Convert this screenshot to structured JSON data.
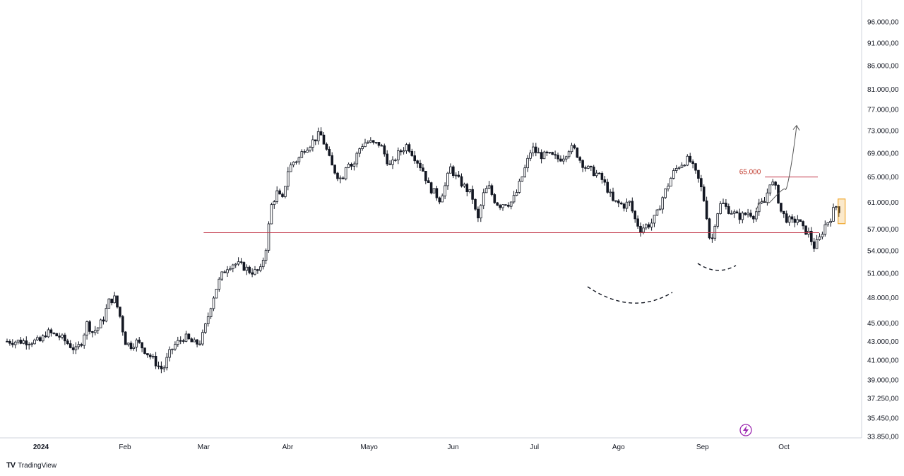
{
  "chart_data": {
    "type": "candlestick",
    "title": "",
    "xlabel": "",
    "ylabel": "",
    "yaxis_scale": "log",
    "ylim": [
      33850,
      100000
    ],
    "grid": false,
    "y_tick_labels": [
      "96.000,00",
      "91.000,00",
      "86.000,00",
      "81.000,00",
      "77.000,00",
      "73.000,00",
      "69.000,00",
      "65.000,00",
      "61.000,00",
      "57.000,00",
      "54.000,00",
      "51.000,00",
      "48.000,00",
      "45.000,00",
      "43.000,00",
      "41.000,00",
      "39.000,00",
      "37.250,00",
      "35.450,00",
      "33.850,00"
    ],
    "y_tick_values": [
      96000,
      91000,
      86000,
      81000,
      77000,
      73000,
      69000,
      65000,
      61000,
      57000,
      54000,
      51000,
      48000,
      45000,
      43000,
      41000,
      39000,
      37250,
      35450,
      33850
    ],
    "x_tick_labels": [
      "2024",
      "Feb",
      "Mar",
      "Abr",
      "Mayo",
      "Jun",
      "Jul",
      "Ago",
      "Sep",
      "Oct"
    ],
    "x_tick_dates": [
      "2024-01-01",
      "2024-02-01",
      "2024-03-01",
      "2024-04-01",
      "2024-05-01",
      "2024-06-01",
      "2024-07-01",
      "2024-08-01",
      "2024-09-01",
      "2024-10-01"
    ],
    "xlim": [
      "2024-01-01",
      "2024-10-31"
    ],
    "series": [
      {
        "name": "",
        "points": [
          [
            "2024-01-01",
            43000
          ],
          [
            "2024-01-03",
            44000
          ],
          [
            "2024-01-05",
            43800
          ],
          [
            "2024-01-08",
            43500
          ],
          [
            "2024-01-10",
            43000
          ],
          [
            "2024-01-12",
            42500
          ],
          [
            "2024-01-14",
            42000
          ],
          [
            "2024-01-16",
            43000
          ],
          [
            "2024-01-18",
            45000
          ],
          [
            "2024-01-20",
            44000
          ],
          [
            "2024-01-22",
            44500
          ],
          [
            "2024-01-24",
            45500
          ],
          [
            "2024-01-26",
            47500
          ],
          [
            "2024-01-28",
            48000
          ],
          [
            "2024-01-30",
            46000
          ],
          [
            "2024-02-01",
            43000
          ],
          [
            "2024-02-03",
            42500
          ],
          [
            "2024-02-05",
            43000
          ],
          [
            "2024-02-07",
            42500
          ],
          [
            "2024-02-09",
            41800
          ],
          [
            "2024-02-11",
            41200
          ],
          [
            "2024-02-13",
            40500
          ],
          [
            "2024-02-15",
            40000
          ],
          [
            "2024-02-17",
            41500
          ],
          [
            "2024-02-19",
            42500
          ],
          [
            "2024-02-21",
            43000
          ],
          [
            "2024-02-23",
            43500
          ],
          [
            "2024-02-25",
            43000
          ],
          [
            "2024-02-27",
            42700
          ],
          [
            "2024-02-29",
            43000
          ],
          [
            "2024-03-02",
            45000
          ],
          [
            "2024-03-04",
            47500
          ],
          [
            "2024-03-06",
            49500
          ],
          [
            "2024-03-08",
            51000
          ],
          [
            "2024-03-10",
            52000
          ],
          [
            "2024-03-12",
            52300
          ],
          [
            "2024-03-14",
            52100
          ],
          [
            "2024-03-16",
            51800
          ],
          [
            "2024-03-18",
            51300
          ],
          [
            "2024-03-20",
            51200
          ],
          [
            "2024-03-22",
            51400
          ],
          [
            "2024-03-24",
            54500
          ],
          [
            "2024-03-26",
            60500
          ],
          [
            "2024-03-28",
            62500
          ],
          [
            "2024-03-30",
            61200
          ],
          [
            "2024-04-01",
            66000
          ],
          [
            "2024-04-03",
            67500
          ],
          [
            "2024-04-05",
            68000
          ],
          [
            "2024-04-07",
            69800
          ],
          [
            "2024-04-09",
            70500
          ],
          [
            "2024-04-11",
            71500
          ],
          [
            "2024-04-13",
            72500
          ],
          [
            "2024-04-15",
            70000
          ],
          [
            "2024-04-17",
            67000
          ],
          [
            "2024-04-19",
            65500
          ],
          [
            "2024-04-21",
            64500
          ],
          [
            "2024-04-23",
            68000
          ],
          [
            "2024-04-25",
            66500
          ],
          [
            "2024-04-27",
            69500
          ],
          [
            "2024-04-29",
            70800
          ],
          [
            "2024-05-01",
            71000
          ],
          [
            "2024-05-03",
            70500
          ],
          [
            "2024-05-05",
            70700
          ],
          [
            "2024-05-07",
            68500
          ],
          [
            "2024-05-09",
            66500
          ],
          [
            "2024-05-11",
            68500
          ],
          [
            "2024-05-13",
            69500
          ],
          [
            "2024-05-15",
            70500
          ],
          [
            "2024-05-17",
            69000
          ],
          [
            "2024-05-19",
            67500
          ],
          [
            "2024-05-21",
            66000
          ],
          [
            "2024-05-23",
            63500
          ],
          [
            "2024-05-25",
            62500
          ],
          [
            "2024-05-27",
            61500
          ],
          [
            "2024-05-29",
            63500
          ],
          [
            "2024-05-31",
            66500
          ],
          [
            "2024-06-02",
            65000
          ],
          [
            "2024-06-04",
            64000
          ],
          [
            "2024-06-06",
            63000
          ],
          [
            "2024-06-08",
            62000
          ],
          [
            "2024-06-10",
            58000
          ],
          [
            "2024-06-12",
            62000
          ],
          [
            "2024-06-14",
            63500
          ],
          [
            "2024-06-16",
            61500
          ],
          [
            "2024-06-18",
            60500
          ],
          [
            "2024-06-20",
            61000
          ],
          [
            "2024-06-22",
            60800
          ],
          [
            "2024-06-24",
            62000
          ],
          [
            "2024-06-26",
            64500
          ],
          [
            "2024-06-28",
            67000
          ],
          [
            "2024-06-30",
            70000
          ],
          [
            "2024-07-02",
            69000
          ],
          [
            "2024-07-04",
            68500
          ],
          [
            "2024-07-06",
            68700
          ],
          [
            "2024-07-08",
            68300
          ],
          [
            "2024-07-10",
            68000
          ],
          [
            "2024-07-12",
            68600
          ],
          [
            "2024-07-14",
            70000
          ],
          [
            "2024-07-16",
            69500
          ],
          [
            "2024-07-18",
            67700
          ],
          [
            "2024-07-20",
            66500
          ],
          [
            "2024-07-22",
            66000
          ],
          [
            "2024-07-24",
            65500
          ],
          [
            "2024-07-26",
            64500
          ],
          [
            "2024-07-28",
            63000
          ],
          [
            "2024-07-30",
            61000
          ],
          [
            "2024-08-01",
            60800
          ],
          [
            "2024-08-03",
            60500
          ],
          [
            "2024-08-05",
            61000
          ],
          [
            "2024-08-07",
            58500
          ],
          [
            "2024-08-09",
            57000
          ],
          [
            "2024-08-11",
            57500
          ],
          [
            "2024-08-13",
            57800
          ],
          [
            "2024-08-15",
            59000
          ],
          [
            "2024-08-17",
            61500
          ],
          [
            "2024-08-19",
            63500
          ],
          [
            "2024-08-21",
            65500
          ],
          [
            "2024-08-23",
            66800
          ],
          [
            "2024-08-25",
            67500
          ],
          [
            "2024-08-27",
            68000
          ],
          [
            "2024-08-29",
            66000
          ],
          [
            "2024-08-31",
            64000
          ],
          [
            "2024-09-02",
            60500
          ],
          [
            "2024-09-04",
            54500
          ],
          [
            "2024-09-06",
            59000
          ],
          [
            "2024-09-08",
            61000
          ],
          [
            "2024-09-10",
            60000
          ],
          [
            "2024-09-12",
            59500
          ],
          [
            "2024-09-14",
            58800
          ],
          [
            "2024-09-16",
            59000
          ],
          [
            "2024-09-18",
            59500
          ],
          [
            "2024-09-20",
            59000
          ],
          [
            "2024-09-22",
            60500
          ],
          [
            "2024-09-24",
            61000
          ],
          [
            "2024-09-26",
            64500
          ],
          [
            "2024-09-28",
            63000
          ],
          [
            "2024-09-30",
            59500
          ],
          [
            "2024-10-02",
            58500
          ],
          [
            "2024-10-04",
            58000
          ],
          [
            "2024-10-06",
            58500
          ],
          [
            "2024-10-08",
            57000
          ],
          [
            "2024-10-10",
            56500
          ],
          [
            "2024-10-12",
            54500
          ],
          [
            "2024-10-14",
            55500
          ],
          [
            "2024-10-16",
            57500
          ],
          [
            "2024-10-18",
            58500
          ],
          [
            "2024-10-20",
            60500
          ],
          [
            "2024-10-22",
            59500
          ]
        ]
      }
    ],
    "annotations": [
      {
        "type": "hline",
        "value": 56500,
        "from": "2024-03-01",
        "color": "#c2384a"
      },
      {
        "type": "hline",
        "value": 65000,
        "from": "2024-09-24",
        "color": "#c2384a",
        "label": "65.000"
      },
      {
        "type": "highlight-box",
        "color": "#f0a830"
      },
      {
        "type": "projection-arrow",
        "target": 74000,
        "color": "#555555"
      },
      {
        "type": "dashed-curve",
        "note": "bottom"
      },
      {
        "type": "dashed-curve",
        "note": "bottom"
      }
    ]
  },
  "branding": {
    "logo": "TV",
    "name": "TradingView",
    "flash_icon": "lightning-icon"
  },
  "colors": {
    "candle": "#131722",
    "support": "#c2384a",
    "highlight": "#f0a830",
    "accent": "#9c27b0"
  }
}
